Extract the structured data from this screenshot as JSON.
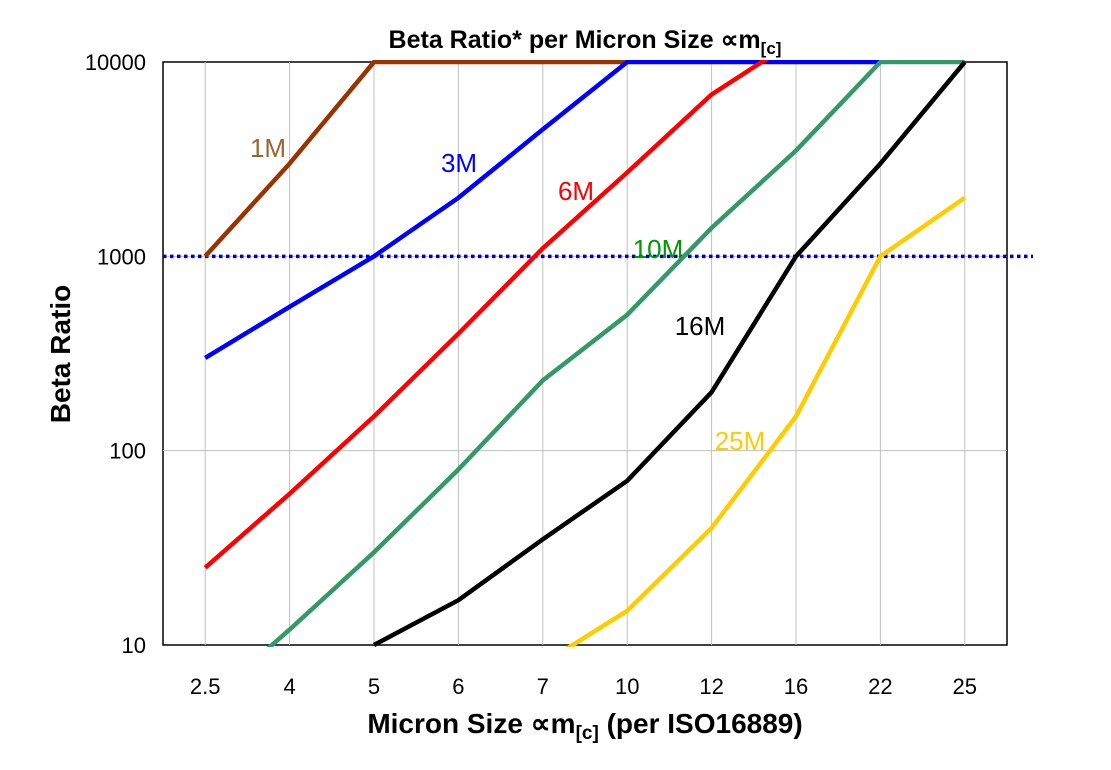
{
  "chart_data": {
    "type": "line",
    "title": "Beta Ratio* per Micron Size ∝m",
    "title_sub": "[c]",
    "xlabel_pre": "Micron Size ∝m",
    "xlabel_sub": "[c]",
    "xlabel_post": " (per ISO16889)",
    "ylabel": "Beta Ratio",
    "categories": [
      "2.5",
      "4",
      "5",
      "6",
      "7",
      "10",
      "12",
      "16",
      "22",
      "25"
    ],
    "y_scale": "log",
    "ylim": [
      10,
      10000
    ],
    "y_ticks": [
      "10",
      "100",
      "1000",
      "10000"
    ],
    "y_tick_values": [
      10,
      100,
      1000,
      10000
    ],
    "grid": true,
    "reference_line": {
      "value": 1000,
      "style": "dotted",
      "color": "#0000cc"
    },
    "series": [
      {
        "name": "1M",
        "color": "#993300",
        "label_color": "#996633",
        "values": [
          1000,
          3000,
          10000,
          10000,
          10000,
          10000,
          null,
          null,
          null,
          null
        ]
      },
      {
        "name": "3M",
        "color": "#0000ff",
        "label_color": "#0000ff",
        "values": [
          300,
          550,
          1000,
          2000,
          4500,
          10000,
          10000,
          10000,
          10000,
          null
        ]
      },
      {
        "name": "6M",
        "color": "#ff0000",
        "label_color": "#ff0000",
        "values": [
          25,
          60,
          150,
          400,
          1100,
          2700,
          6800,
          13000,
          null,
          null
        ]
      },
      {
        "name": "10M",
        "color": "#339966",
        "label_color": "#009900",
        "values": [
          5,
          12,
          30,
          80,
          230,
          500,
          1400,
          3500,
          10000,
          10000
        ]
      },
      {
        "name": "16M",
        "color": "#000000",
        "label_color": "#000000",
        "values": [
          null,
          null,
          10,
          17,
          35,
          70,
          200,
          1000,
          3000,
          10000
        ]
      },
      {
        "name": "25M",
        "color": "#ffcc00",
        "label_color": "#ffcc00",
        "values": [
          null,
          null,
          null,
          null,
          8,
          15,
          40,
          150,
          1000,
          2000
        ]
      }
    ]
  }
}
